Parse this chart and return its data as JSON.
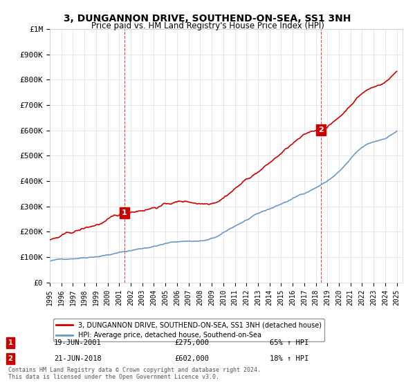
{
  "title": "3, DUNGANNON DRIVE, SOUTHEND-ON-SEA, SS1 3NH",
  "subtitle": "Price paid vs. HM Land Registry's House Price Index (HPI)",
  "ylabel_ticks": [
    "£0",
    "£100K",
    "£200K",
    "£300K",
    "£400K",
    "£500K",
    "£600K",
    "£700K",
    "£800K",
    "£900K",
    "£1M"
  ],
  "ytick_values": [
    0,
    100000,
    200000,
    300000,
    400000,
    500000,
    600000,
    700000,
    800000,
    900000,
    1000000
  ],
  "xlim": [
    1995.0,
    2025.5
  ],
  "ylim": [
    0,
    1000000
  ],
  "xticks": [
    1995,
    1996,
    1997,
    1998,
    1999,
    2000,
    2001,
    2002,
    2003,
    2004,
    2005,
    2006,
    2007,
    2008,
    2009,
    2010,
    2011,
    2012,
    2013,
    2014,
    2015,
    2016,
    2017,
    2018,
    2019,
    2020,
    2021,
    2022,
    2023,
    2024,
    2025
  ],
  "sale1_x": 2001.46,
  "sale1_y": 275000,
  "sale1_label": "1",
  "sale2_x": 2018.46,
  "sale2_y": 602000,
  "sale2_label": "2",
  "red_line_color": "#cc0000",
  "blue_line_color": "#6699cc",
  "grid_color": "#dddddd",
  "background_color": "#ffffff",
  "legend_line1": "3, DUNGANNON DRIVE, SOUTHEND-ON-SEA, SS1 3NH (detached house)",
  "legend_line2": "HPI: Average price, detached house, Southend-on-Sea",
  "annotation1_date": "19-JUN-2001",
  "annotation1_price": "£275,000",
  "annotation1_hpi": "65% ↑ HPI",
  "annotation2_date": "21-JUN-2018",
  "annotation2_price": "£602,000",
  "annotation2_hpi": "18% ↑ HPI",
  "footer": "Contains HM Land Registry data © Crown copyright and database right 2024.\nThis data is licensed under the Open Government Licence v3.0."
}
